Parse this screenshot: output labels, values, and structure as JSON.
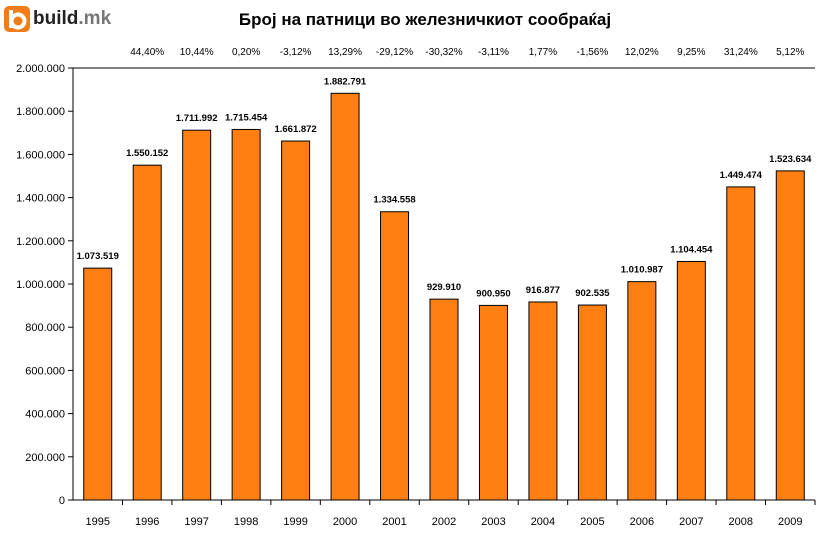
{
  "logo": {
    "name": "build",
    "tld": ".mk"
  },
  "chart_data": {
    "type": "bar",
    "title": "Број на патници во железничкиот сообраќај",
    "xlabel": "",
    "ylabel": "",
    "ylim": [
      0,
      2000000
    ],
    "y_ticks": [
      "0",
      "200.000",
      "400.000",
      "600.000",
      "800.000",
      "1.000.000",
      "1.200.000",
      "1.400.000",
      "1.600.000",
      "1.800.000",
      "2.000.000"
    ],
    "categories": [
      "1995",
      "1996",
      "1997",
      "1998",
      "1999",
      "2000",
      "2001",
      "2002",
      "2003",
      "2004",
      "2005",
      "2006",
      "2007",
      "2008",
      "2009"
    ],
    "values": [
      1073519,
      1550152,
      1711992,
      1715454,
      1661872,
      1882791,
      1334558,
      929910,
      900950,
      916877,
      902535,
      1010987,
      1104454,
      1449474,
      1523634
    ],
    "value_labels": [
      "1.073.519",
      "1.550.152",
      "1.711.992",
      "1.715.454",
      "1.661.872",
      "1.882.791",
      "1.334.558",
      "929.910",
      "900.950",
      "916.877",
      "902.535",
      "1.010.987",
      "1.104.454",
      "1.449.474",
      "1.523.634"
    ],
    "pct_change": [
      "",
      "44,40%",
      "10,44%",
      "0,20%",
      "-3,12%",
      "13,29%",
      "-29,12%",
      "-30,32%",
      "-3,11%",
      "1,77%",
      "-1,56%",
      "12,02%",
      "9,25%",
      "31,24%",
      "5,12%"
    ],
    "bar_color": "#ff7f12",
    "grid": false
  }
}
